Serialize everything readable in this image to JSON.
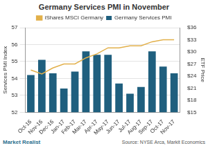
{
  "chart_data": {
    "type": "bar",
    "title": "Germany Services PMI in November",
    "categories": [
      "Oct-16",
      "Nov-16",
      "Dec-16",
      "Jan-17",
      "Feb-17",
      "Mar-17",
      "Apr-17",
      "May-17",
      "Jun-17",
      "Jul-17",
      "Aug-17",
      "Sep-17",
      "Oct-17",
      "Nov-17"
    ],
    "series": [
      {
        "name": "Germany Services PMI",
        "type": "bar",
        "color": "#1f5f7e",
        "values": [
          54.2,
          55.1,
          54.3,
          53.4,
          54.4,
          55.6,
          55.4,
          55.4,
          53.7,
          53.1,
          53.5,
          55.6,
          54.7,
          54.3
        ]
      },
      {
        "name": "iShares MSCI Germany",
        "type": "line",
        "axis": "y2",
        "color": "#e2b04a",
        "marker": "none",
        "values": [
          25.5,
          24.5,
          26,
          27,
          27,
          28.5,
          29.5,
          31,
          31,
          31.5,
          31.5,
          32.5,
          33,
          33
        ]
      }
    ],
    "y_label": "Services PMI Index",
    "y2_label": "ETF Price",
    "ylim": [
      52,
      57
    ],
    "yticks": [
      52,
      53,
      54,
      55,
      56,
      57
    ],
    "y2lim": [
      15,
      36
    ],
    "y2ticks": [
      {
        "value": 15,
        "label": "$15"
      },
      {
        "value": 18,
        "label": "$18"
      },
      {
        "value": 21,
        "label": "$21"
      },
      {
        "value": 24,
        "label": "$24"
      },
      {
        "value": 27,
        "label": "$27"
      },
      {
        "value": 30,
        "label": "$30"
      },
      {
        "value": 33,
        "label": "$33"
      },
      {
        "value": 36,
        "label": "$36"
      }
    ],
    "grid": true,
    "legend": "top",
    "annotations": [
      "Market Realist",
      "Source: NYSE Arca, Markit Economics"
    ]
  }
}
